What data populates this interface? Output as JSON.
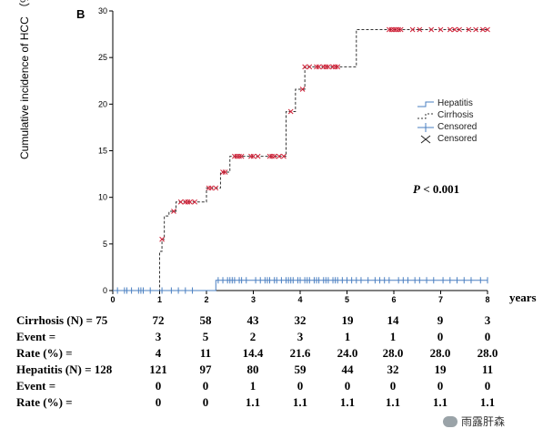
{
  "panel_label": "B",
  "p_value": {
    "prefix": "P",
    "text": " < 0.001"
  },
  "legend": [
    {
      "label": "Hepatitis",
      "style": "solid-step",
      "color": "#4a7fc1"
    },
    {
      "label": "Cirrhosis",
      "style": "dashed-step",
      "color": "#333333"
    },
    {
      "label": "Censored",
      "style": "plus",
      "color": "#4a7fc1"
    },
    {
      "label": "Censored",
      "style": "cross",
      "color": "#222222"
    }
  ],
  "chart_data": {
    "type": "line",
    "xlabel": "years",
    "ylabel": "Cumulative incidence of HCC （%）",
    "xlim": [
      0,
      8
    ],
    "ylim": [
      0,
      30
    ],
    "xticks": [
      0,
      1,
      2,
      3,
      4,
      5,
      6,
      7,
      8
    ],
    "yticks": [
      0,
      5,
      10,
      15,
      20,
      25,
      30
    ],
    "grid": false,
    "legend_position": "right",
    "series": [
      {
        "name": "Cirrhosis",
        "color": "#333333",
        "censor_color": "#d0243a",
        "step_x": [
          0,
          1.0,
          1.05,
          1.1,
          1.2,
          1.35,
          1.5,
          1.9,
          2.0,
          2.15,
          2.3,
          2.5,
          3.0,
          3.45,
          3.7,
          3.9,
          4.1,
          5.2,
          8.0
        ],
        "step_y": [
          0,
          4.2,
          5.5,
          8.0,
          8.5,
          9.5,
          9.5,
          9.5,
          11.0,
          11.0,
          12.7,
          14.4,
          14.4,
          14.4,
          19.2,
          21.6,
          24.0,
          28.0,
          28.0
        ],
        "censored_x": [
          1.05,
          1.3,
          1.45,
          1.55,
          1.6,
          1.65,
          1.75,
          2.05,
          2.1,
          2.2,
          2.35,
          2.4,
          2.6,
          2.65,
          2.7,
          2.75,
          2.95,
          3.0,
          3.1,
          3.35,
          3.4,
          3.45,
          3.55,
          3.65,
          3.8,
          4.05,
          4.1,
          4.2,
          4.35,
          4.4,
          4.5,
          4.55,
          4.6,
          4.7,
          4.75,
          4.8,
          5.9,
          5.95,
          6.0,
          6.05,
          6.1,
          6.15,
          6.4,
          6.55,
          6.8,
          7.0,
          7.2,
          7.3,
          7.4,
          7.6,
          7.75,
          7.9,
          8.0
        ]
      },
      {
        "name": "Hepatitis",
        "color": "#4a7fc1",
        "step_x": [
          0,
          2.2,
          8.0
        ],
        "step_y": [
          0,
          1.1,
          1.1
        ],
        "censored_x": [
          0.1,
          0.25,
          0.3,
          0.4,
          0.55,
          0.6,
          0.65,
          0.8,
          1.05,
          1.25,
          1.4,
          1.55,
          1.7,
          2.25,
          2.35,
          2.45,
          2.5,
          2.55,
          2.6,
          2.7,
          2.75,
          2.85,
          3.05,
          3.15,
          3.25,
          3.3,
          3.35,
          3.45,
          3.5,
          3.6,
          3.7,
          3.75,
          3.8,
          3.85,
          3.95,
          4.0,
          4.1,
          4.15,
          4.2,
          4.3,
          4.35,
          4.4,
          4.5,
          4.55,
          4.6,
          4.7,
          4.75,
          4.8,
          4.9,
          5.0,
          5.1,
          5.2,
          5.3,
          5.45,
          5.6,
          5.7,
          5.8,
          5.9,
          6.1,
          6.2,
          6.3,
          6.45,
          6.55,
          6.7,
          6.85,
          7.05,
          7.2,
          7.35,
          7.5,
          7.65,
          7.85,
          8.0
        ]
      }
    ]
  },
  "risk_table": {
    "rows": [
      {
        "label": "Cirrhosis (N) = 75",
        "values": [
          "72",
          "58",
          "43",
          "32",
          "19",
          "14",
          "9",
          "3"
        ]
      },
      {
        "label": "Event =",
        "values": [
          "3",
          "5",
          "2",
          "3",
          "1",
          "1",
          "0",
          "0"
        ]
      },
      {
        "label": "Rate (%) =",
        "values": [
          "4",
          "11",
          "14.4",
          "21.6",
          "24.0",
          "28.0",
          "28.0",
          "28.0"
        ]
      },
      {
        "label": "Hepatitis (N) = 128",
        "values": [
          "121",
          "97",
          "80",
          "59",
          "44",
          "32",
          "19",
          "11"
        ]
      },
      {
        "label": "Event =",
        "values": [
          "0",
          "0",
          "1",
          "0",
          "0",
          "0",
          "0",
          "0"
        ]
      },
      {
        "label": "Rate (%) =",
        "values": [
          "0",
          "0",
          "1.1",
          "1.1",
          "1.1",
          "1.1",
          "1.1",
          "1.1"
        ]
      }
    ]
  },
  "watermark": {
    "text": "雨露肝森",
    "icon": "wechat-icon"
  }
}
